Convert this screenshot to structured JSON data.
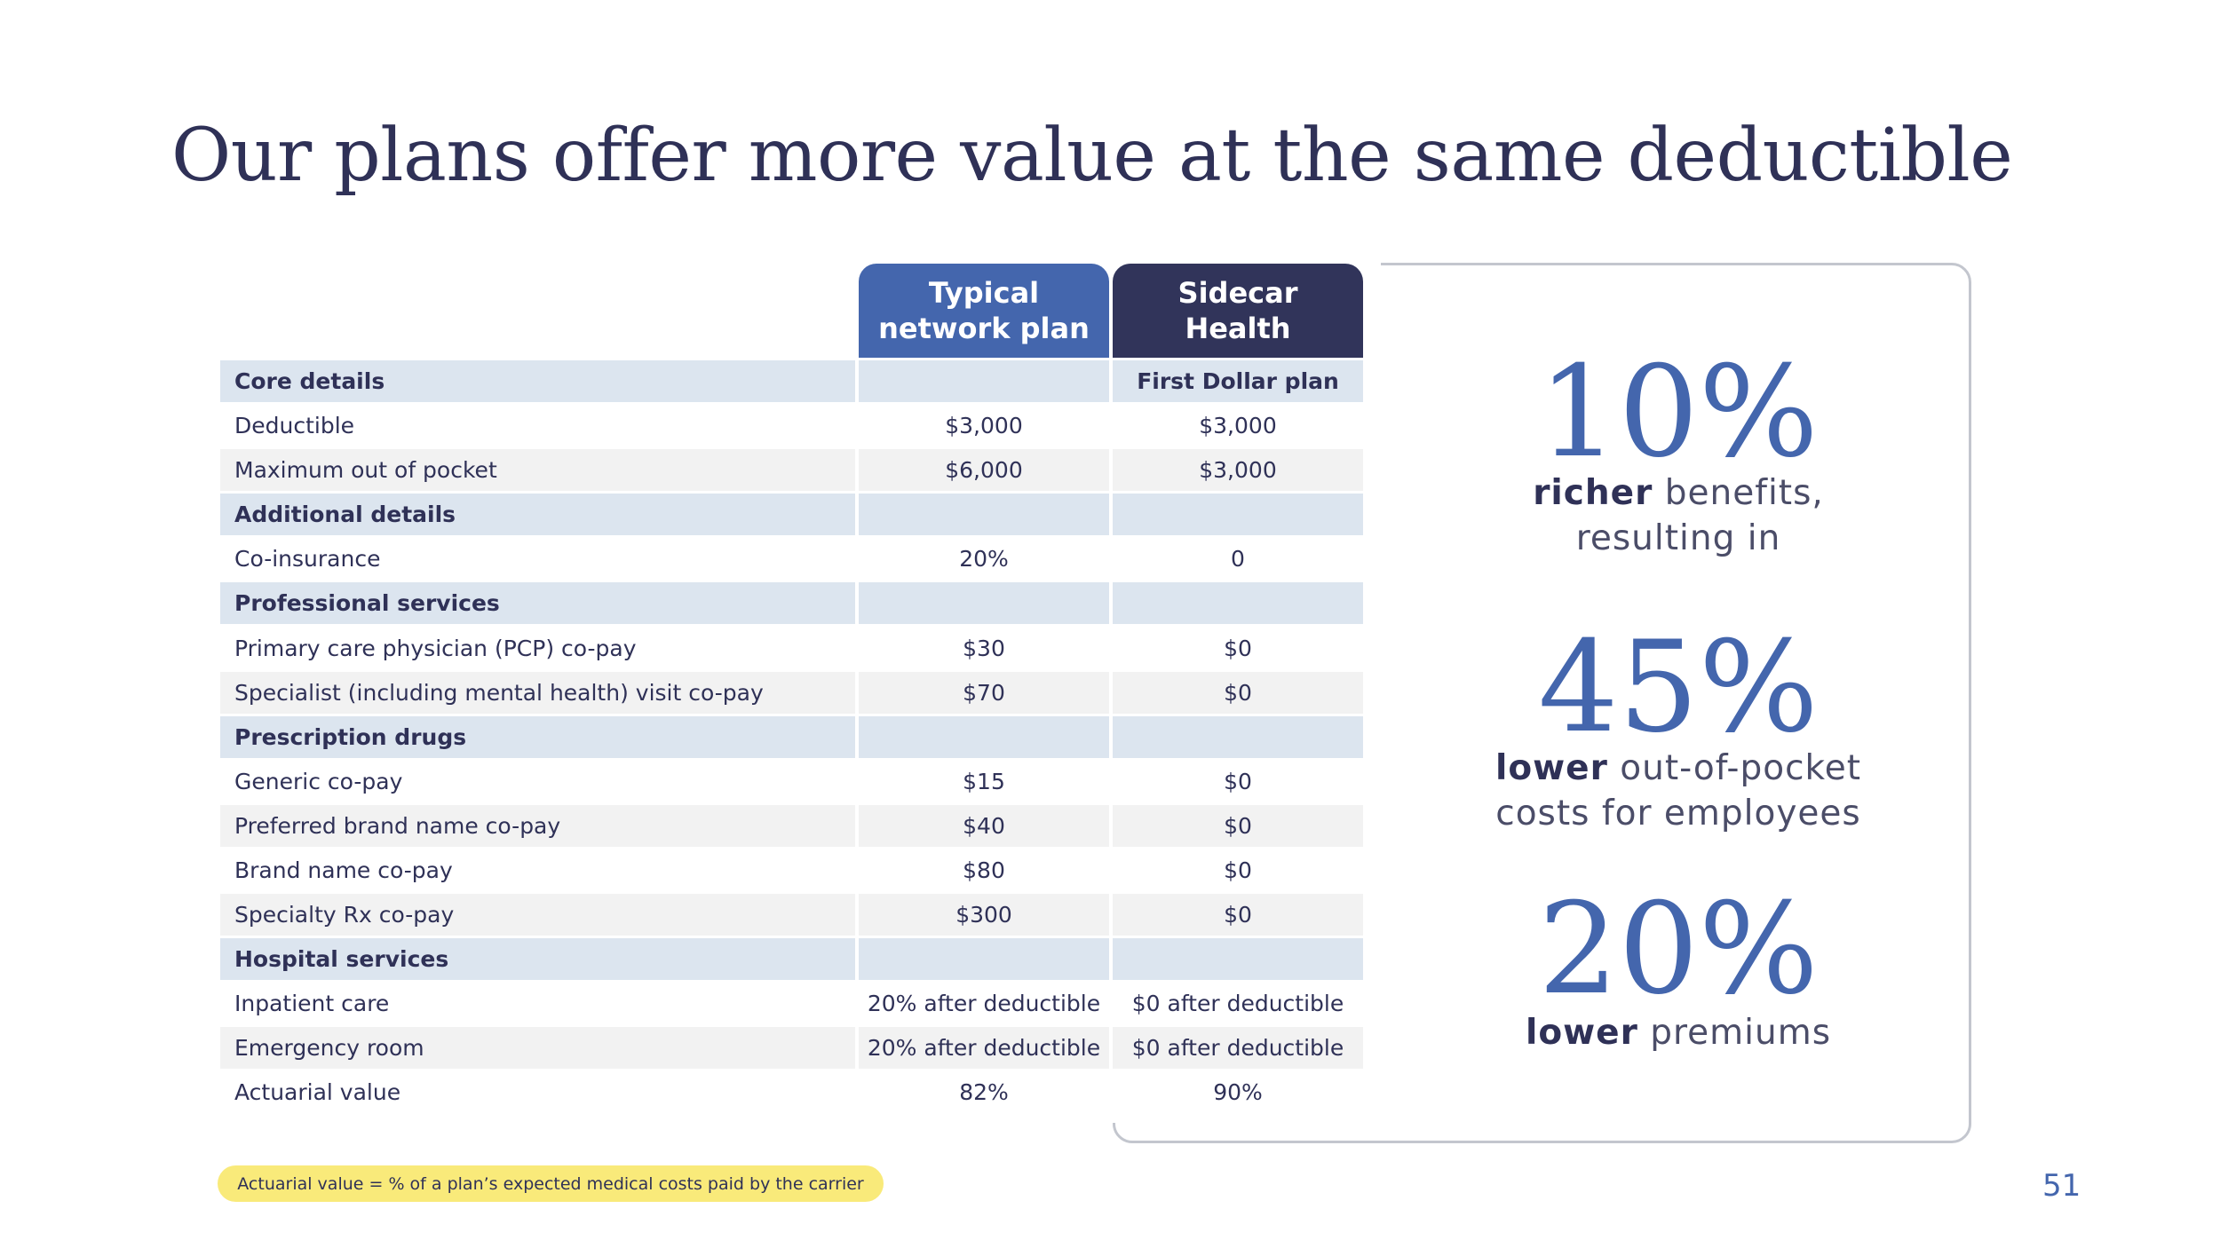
{
  "title": "Our plans offer more value at the same deductible",
  "columns": {
    "typical": "Typical\nnetwork plan",
    "sidecar": "Sidecar\nHealth"
  },
  "rows": [
    {
      "label": "Core details",
      "typical": "",
      "sidecar": "First Dollar plan"
    },
    {
      "label": "Deductible",
      "typical": "$3,000",
      "sidecar": "$3,000"
    },
    {
      "label": "Maximum out of pocket",
      "typical": "$6,000",
      "sidecar": "$3,000"
    },
    {
      "label": "Additional details",
      "typical": "",
      "sidecar": ""
    },
    {
      "label": "Co-insurance",
      "typical": "20%",
      "sidecar": "0"
    },
    {
      "label": "Professional services",
      "typical": "",
      "sidecar": ""
    },
    {
      "label": "Primary care physician (PCP) co-pay",
      "typical": "$30",
      "sidecar": "$0"
    },
    {
      "label": "Specialist (including mental health) visit co-pay",
      "typical": "$70",
      "sidecar": "$0"
    },
    {
      "label": "Prescription drugs",
      "typical": "",
      "sidecar": ""
    },
    {
      "label": "Generic co-pay",
      "typical": "$15",
      "sidecar": "$0"
    },
    {
      "label": "Preferred brand name co-pay",
      "typical": "$40",
      "sidecar": "$0"
    },
    {
      "label": "Brand name co-pay",
      "typical": "$80",
      "sidecar": "$0"
    },
    {
      "label": "Specialty Rx co-pay",
      "typical": "$300",
      "sidecar": "$0"
    },
    {
      "label": "Hospital services",
      "typical": "",
      "sidecar": ""
    },
    {
      "label": "Inpatient care",
      "typical": "20% after deductible",
      "sidecar": "$0 after deductible"
    },
    {
      "label": "Emergency room",
      "typical": "20% after deductible",
      "sidecar": "$0 after deductible"
    },
    {
      "label": "Actuarial value",
      "typical": "82%",
      "sidecar": "90%"
    }
  ],
  "stats": [
    {
      "value": "10%",
      "bold": "richer",
      "rest": " benefits,",
      "line2": "resulting in"
    },
    {
      "value": "45%",
      "bold": "lower",
      "rest": " out-of-pocket",
      "line2": "costs for employees"
    },
    {
      "value": "20%",
      "bold": "lower",
      "rest": " premiums",
      "line2": ""
    }
  ],
  "footnote": "Actuarial value = % of a plan’s expected medical costs paid by the carrier",
  "page_number": "51"
}
